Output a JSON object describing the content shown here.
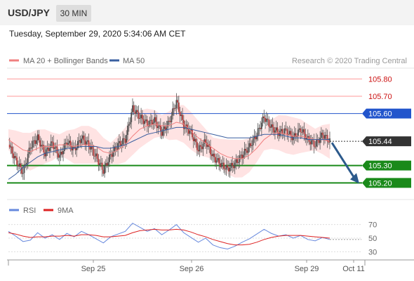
{
  "header": {
    "symbol": "USD/JPY",
    "timeframe": "30 MIN",
    "datetime": "Tuesday, September 29, 2020 5:34:06 AM CET"
  },
  "copyright": "Research © 2020 Trading Central",
  "colors": {
    "ma20": "#f08080",
    "ma50": "#3a5fa0",
    "support": "#1a8a1a",
    "pivot": "#2255cc",
    "resistance": "#ff9999",
    "last": "#333333",
    "rsi": "#6688dd",
    "rsi_ma": "#dd2222",
    "arrow": "#2c5a8c"
  },
  "chart_data": [
    {
      "type": "candlestick",
      "title": "",
      "legend": [
        {
          "name": "MA 20 + Bollinger Bands",
          "color": "#f08080"
        },
        {
          "name": "MA 50",
          "color": "#3a5fa0"
        }
      ],
      "legend_position": "top-left",
      "ylim": [
        105.1,
        105.85
      ],
      "x_ticks": [
        "Sep 25",
        "Sep 26",
        "Sep 29",
        "Oct 11"
      ],
      "levels": [
        {
          "label": "105.80",
          "value": 105.8,
          "kind": "resistance"
        },
        {
          "label": "105.70",
          "value": 105.7,
          "kind": "resistance"
        },
        {
          "label": "105.60",
          "value": 105.6,
          "kind": "pivot"
        },
        {
          "label": "105.44",
          "value": 105.44,
          "kind": "last"
        },
        {
          "label": "105.30",
          "value": 105.3,
          "kind": "support"
        },
        {
          "label": "105.20",
          "value": 105.2,
          "kind": "support"
        }
      ],
      "price_path": [
        105.42,
        105.33,
        105.26,
        105.41,
        105.46,
        105.37,
        105.43,
        105.35,
        105.44,
        105.39,
        105.46,
        105.42,
        105.35,
        105.27,
        105.36,
        105.42,
        105.45,
        105.63,
        105.58,
        105.54,
        105.56,
        105.49,
        105.55,
        105.67,
        105.53,
        105.49,
        105.39,
        105.44,
        105.35,
        105.31,
        105.28,
        105.31,
        105.36,
        105.41,
        105.48,
        105.58,
        105.52,
        105.49,
        105.5,
        105.46,
        105.51,
        105.45,
        105.42,
        105.48,
        105.44
      ],
      "ma20": [
        105.45,
        105.42,
        105.39,
        105.38,
        105.4,
        105.41,
        105.41,
        105.42,
        105.42,
        105.41,
        105.42,
        105.42,
        105.41,
        105.38,
        105.37,
        105.39,
        105.42,
        105.47,
        105.51,
        105.53,
        105.54,
        105.53,
        105.53,
        105.55,
        105.54,
        105.5,
        105.46,
        105.43,
        105.4,
        105.37,
        105.35,
        105.34,
        105.34,
        105.36,
        105.4,
        105.45,
        105.48,
        105.49,
        105.48,
        105.47,
        105.47,
        105.46,
        105.45,
        105.45,
        105.44
      ],
      "ma50": [
        105.22,
        105.25,
        105.29,
        105.32,
        105.35,
        105.37,
        105.38,
        105.39,
        105.4,
        105.4,
        105.41,
        105.41,
        105.41,
        105.4,
        105.4,
        105.41,
        105.42,
        105.44,
        105.46,
        105.48,
        105.49,
        105.5,
        105.51,
        105.52,
        105.52,
        105.51,
        105.5,
        105.49,
        105.48,
        105.47,
        105.46,
        105.46,
        105.46,
        105.46,
        105.47,
        105.48,
        105.48,
        105.48,
        105.47,
        105.46,
        105.46,
        105.45,
        105.45,
        105.45,
        105.45
      ],
      "forecast": {
        "from": 105.44,
        "to": 105.2
      }
    },
    {
      "type": "line",
      "title": "",
      "legend": [
        {
          "name": "RSI",
          "color": "#6688dd"
        },
        {
          "name": "9MA",
          "color": "#dd2222"
        }
      ],
      "legend_position": "top-left",
      "ylim": [
        20,
        80
      ],
      "y_ticks": [
        70,
        50,
        30
      ],
      "series": [
        {
          "name": "RSI",
          "values": [
            60,
            53,
            45,
            47,
            58,
            50,
            55,
            48,
            57,
            52,
            60,
            55,
            49,
            43,
            52,
            56,
            60,
            72,
            66,
            60,
            64,
            55,
            62,
            70,
            58,
            51,
            44,
            50,
            40,
            36,
            34,
            38,
            44,
            49,
            56,
            63,
            57,
            53,
            55,
            50,
            54,
            48,
            46,
            51,
            48
          ]
        },
        {
          "name": "9MA",
          "values": [
            58,
            56,
            53,
            51,
            52,
            52,
            53,
            53,
            54,
            53,
            55,
            55,
            54,
            52,
            52,
            53,
            54,
            58,
            61,
            62,
            63,
            62,
            62,
            63,
            62,
            59,
            55,
            52,
            48,
            45,
            42,
            40,
            40,
            41,
            44,
            48,
            51,
            53,
            54,
            54,
            54,
            53,
            52,
            51,
            50
          ]
        }
      ]
    }
  ]
}
